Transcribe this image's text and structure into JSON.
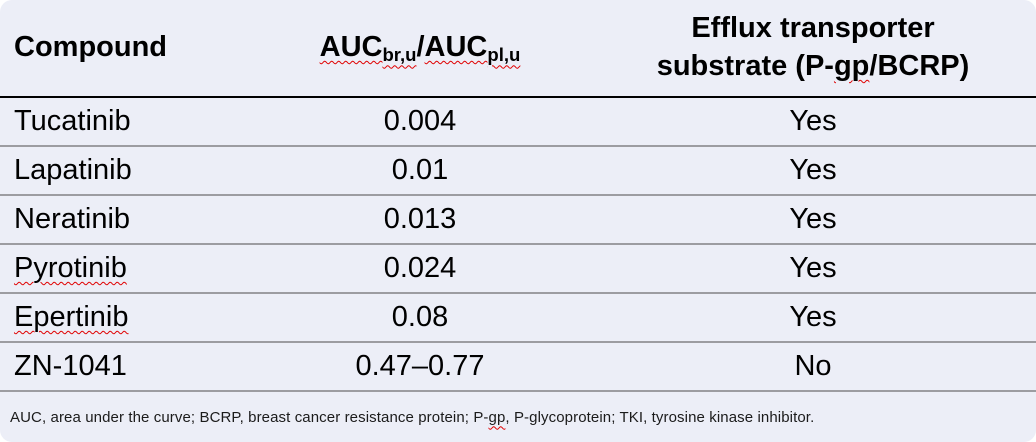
{
  "header": {
    "compound": "Compound",
    "auc_ratio": {
      "auc1": "AUC",
      "sub1": "br,u",
      "slash": "/",
      "auc2": "AUC",
      "sub2": "pl,u"
    },
    "efflux": {
      "line1": "Efflux transporter",
      "line2_pre": "substrate (P-",
      "line2_wavy": "gp",
      "line2_post": "/BCRP)"
    }
  },
  "rows": [
    {
      "compound": "Tucatinib",
      "auc_ratio": "0.004",
      "efflux": "Yes"
    },
    {
      "compound": "Lapatinib",
      "auc_ratio": "0.01",
      "efflux": "Yes"
    },
    {
      "compound": "Neratinib",
      "auc_ratio": "0.013",
      "efflux": "Yes"
    },
    {
      "compound": "Pyrotinib",
      "auc_ratio": "0.024",
      "efflux": "Yes"
    },
    {
      "compound": "Epertinib",
      "auc_ratio": "0.08",
      "efflux": "Yes"
    },
    {
      "compound": "ZN-1041",
      "auc_ratio": "0.47–0.77",
      "efflux": "No"
    }
  ],
  "footnote": {
    "part1": "AUC, area under the curve; BCRP, breast cancer resistance protein; P-",
    "wavy": "gp",
    "part2": ", P-glycoprotein; TKI, tyrosine kinase inhibitor."
  },
  "colors": {
    "card_background": "#eceef7",
    "header_rule": "#000000",
    "row_rule": "#9c9ca1",
    "spellcheck_squiggle": "#e00000",
    "text": "#000000"
  }
}
